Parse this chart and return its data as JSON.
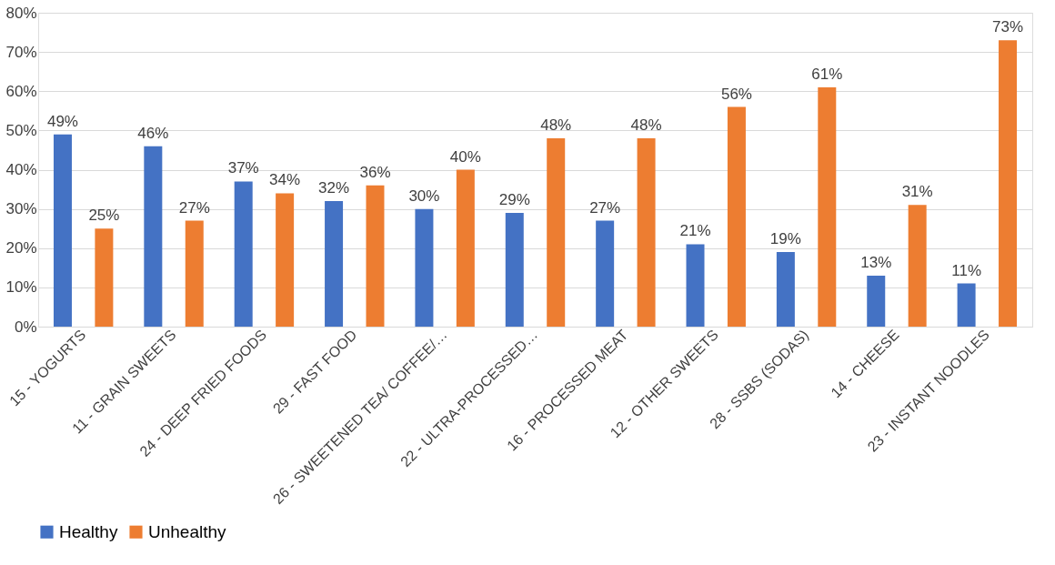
{
  "chart_data": {
    "type": "bar",
    "categories": [
      "15 - YOGURTS",
      "11 - GRAIN SWEETS",
      "24 - DEEP FRIED FOODS",
      "29 - FAST FOOD",
      "26 - SWEETENED TEA/ COFFEE/…",
      "22 - ULTRA-PROCESSED…",
      "16 - PROCESSED MEAT",
      "12 - OTHER SWEETS",
      "28 - SSBS (SODAS)",
      "14 - CHEESE",
      "23 - INSTANT NOODLES"
    ],
    "series": [
      {
        "name": "Healthy",
        "color": "#4472c4",
        "values": [
          49,
          46,
          37,
          32,
          30,
          29,
          27,
          21,
          19,
          13,
          11
        ],
        "value_labels": [
          "49%",
          "46%",
          "37%",
          "32%",
          "30%",
          "29%",
          "27%",
          "21%",
          "19%",
          "13%",
          "11%"
        ]
      },
      {
        "name": "Unhealthy",
        "color": "#ed7d31",
        "values": [
          25,
          27,
          34,
          36,
          40,
          48,
          48,
          56,
          61,
          31,
          73
        ],
        "value_labels": [
          "25%",
          "27%",
          "34%",
          "36%",
          "40%",
          "48%",
          "48%",
          "56%",
          "61%",
          "31%",
          "73%"
        ]
      }
    ],
    "ylim": [
      0,
      80
    ],
    "yticks": [
      {
        "value": 0,
        "label": "0%"
      },
      {
        "value": 10,
        "label": "10%"
      },
      {
        "value": 20,
        "label": "20%"
      },
      {
        "value": 30,
        "label": "30%"
      },
      {
        "value": 40,
        "label": "40%"
      },
      {
        "value": 50,
        "label": "50%"
      },
      {
        "value": 60,
        "label": "60%"
      },
      {
        "value": 70,
        "label": "70%"
      },
      {
        "value": 80,
        "label": "80%"
      }
    ],
    "grid": "y",
    "legend": "bottom"
  }
}
